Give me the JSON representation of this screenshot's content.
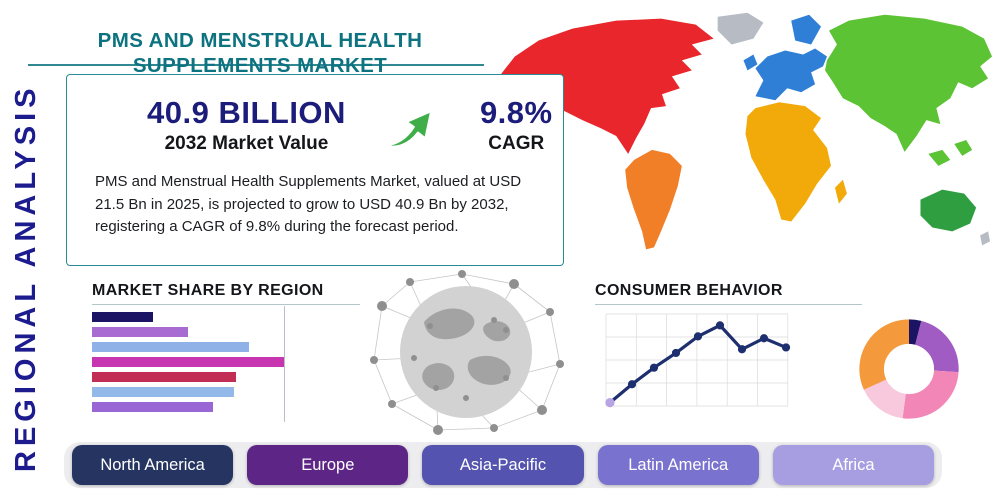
{
  "title": "PMS AND MENSTRUAL HEALTH SUPPLEMENTS MARKET",
  "side_label": "REGIONAL ANALYSIS",
  "stats": {
    "market_value": "40.9 BILLION",
    "market_value_caption": "2032 Market Value",
    "cagr_value": "9.8%",
    "cagr_caption": "CAGR",
    "description": "PMS and Menstrual Health Supplements Market, valued at USD 21.5 Bn in 2025, is projected to grow to USD 40.9 Bn by 2032, registering a CAGR of 9.8% during the forecast period."
  },
  "sections": {
    "market_share_heading": "MARKET SHARE BY REGION",
    "consumer_behavior_heading": "CONSUMER BEHAVIOR"
  },
  "region_buttons": [
    {
      "label": "North America",
      "color": "#253461"
    },
    {
      "label": "Europe",
      "color": "#5c2586"
    },
    {
      "label": "Asia-Pacific",
      "color": "#5553b0"
    },
    {
      "label": "Latin America",
      "color": "#7a72cf"
    },
    {
      "label": "Africa",
      "color": "#a79ee2"
    }
  ],
  "chart_data": [
    {
      "type": "bar",
      "title": "MARKET SHARE BY REGION",
      "orientation": "horizontal",
      "values": [
        32,
        50,
        82,
        100,
        75,
        74,
        63
      ],
      "colors": [
        "#1b1464",
        "#a86bd1",
        "#8fb1e8",
        "#c735b0",
        "#c22d55",
        "#93b9ea",
        "#9a66d6"
      ],
      "axis_labels_visible": false
    },
    {
      "type": "line",
      "title": "CONSUMER BEHAVIOR",
      "values": [
        8,
        28,
        46,
        62,
        80,
        92,
        66,
        78,
        68
      ],
      "color": "#1d2f6e",
      "first_point_color": "#b7a4e3",
      "grid": true,
      "axis_labels_visible": false
    },
    {
      "type": "pie",
      "donut": true,
      "slices": [
        {
          "value": 4,
          "color": "#1b1464"
        },
        {
          "value": 22,
          "color": "#a05cc2"
        },
        {
          "value": 26,
          "color": "#f287b7"
        },
        {
          "value": 16,
          "color": "#f8c8dc"
        },
        {
          "value": 32,
          "color": "#f5993d"
        }
      ],
      "labels_visible": false
    }
  ],
  "map_regions": [
    {
      "name": "north-america",
      "color": "#e8262b"
    },
    {
      "name": "greenland",
      "color": "#b7bcc4"
    },
    {
      "name": "south-america",
      "color": "#f07f28"
    },
    {
      "name": "europe",
      "color": "#2f7fd6"
    },
    {
      "name": "africa",
      "color": "#f2a90a"
    },
    {
      "name": "asia",
      "color": "#5cc335"
    },
    {
      "name": "australia",
      "color": "#2f9e41"
    }
  ],
  "colors": {
    "accent_teal": "#0d7380",
    "navy": "#1c1c7a",
    "arrow_green": "#3fae49"
  }
}
